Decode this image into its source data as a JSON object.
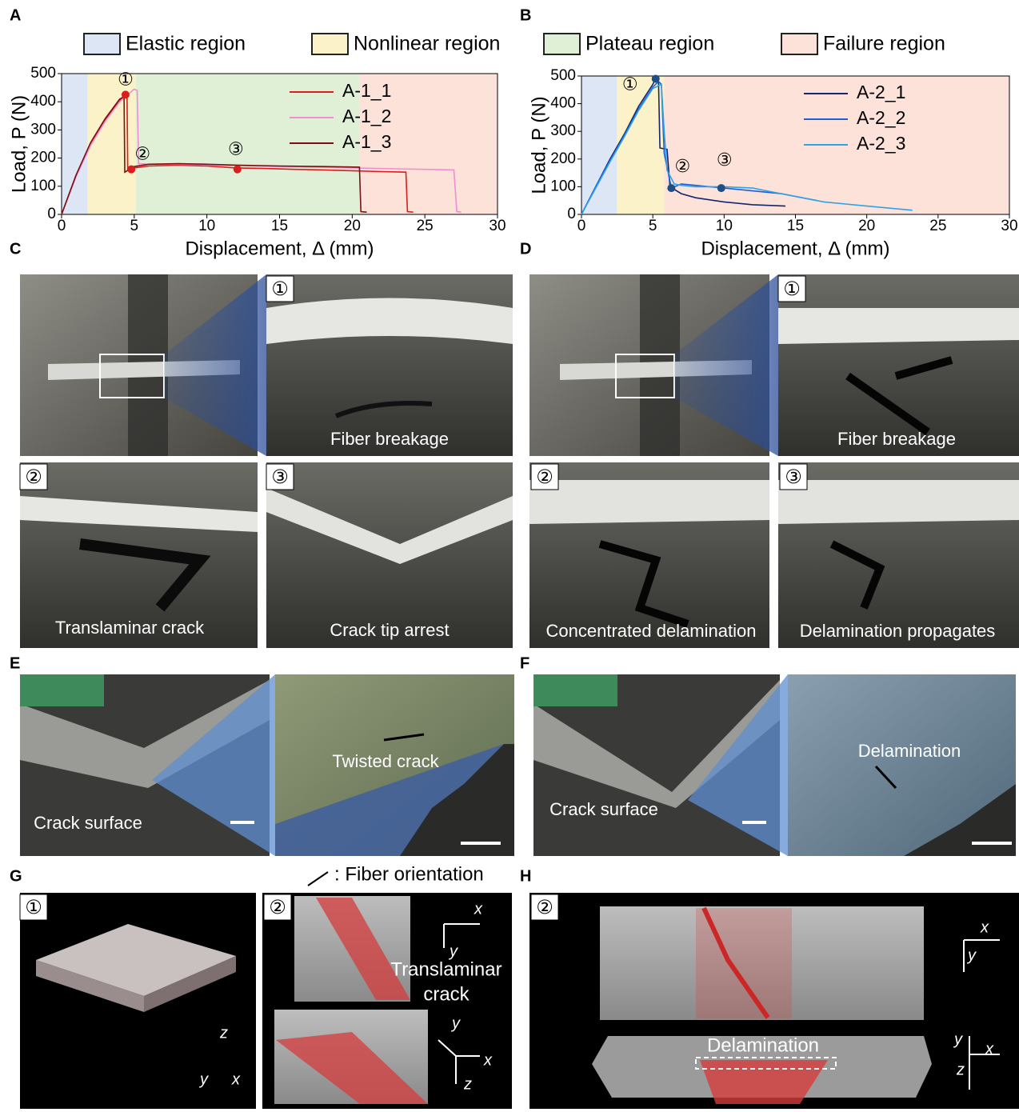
{
  "legend": {
    "items": [
      {
        "name": "Elastic region",
        "color": "#dce6f4"
      },
      {
        "name": "Nonlinear region",
        "color": "#fcf2c9"
      },
      {
        "name": "Plateau region",
        "color": "#dff0d6"
      },
      {
        "name": "Failure region",
        "color": "#fce2d8"
      }
    ]
  },
  "chart_data": [
    {
      "type": "line",
      "panel": "A",
      "xlabel": "Displacement, Δ (mm)",
      "ylabel": "Load, P (N)",
      "xlim": [
        0,
        30
      ],
      "ylim": [
        0,
        500
      ],
      "xticks": [
        0,
        5,
        10,
        15,
        20,
        25,
        30
      ],
      "yticks": [
        0,
        100,
        200,
        300,
        400,
        500
      ],
      "regions": [
        {
          "x": [
            0,
            1.8
          ],
          "color": "#dce6f4"
        },
        {
          "x": [
            1.8,
            5.1
          ],
          "color": "#fcf2c9"
        },
        {
          "x": [
            5.1,
            20.5
          ],
          "color": "#dff0d6"
        },
        {
          "x": [
            20.5,
            30
          ],
          "color": "#fce2d8"
        }
      ],
      "series": [
        {
          "name": "A-1_1",
          "color": "#d81e1e",
          "x": [
            0,
            1,
            2,
            3,
            4,
            4.5,
            4.55,
            5,
            6,
            8,
            10,
            12,
            14,
            16,
            18,
            20,
            22,
            23.7,
            23.8,
            24.2
          ],
          "values": [
            0,
            140,
            250,
            335,
            405,
            432,
            160,
            165,
            172,
            175,
            172,
            165,
            163,
            160,
            158,
            155,
            152,
            150,
            10,
            8
          ]
        },
        {
          "name": "A-1_2",
          "color": "#f08ed0",
          "x": [
            0,
            1,
            2,
            3,
            4,
            5,
            5.2,
            5.3,
            6,
            8,
            10,
            15,
            20,
            25,
            27,
            27.2,
            27.5
          ],
          "values": [
            0,
            135,
            245,
            330,
            400,
            445,
            440,
            180,
            178,
            178,
            176,
            170,
            165,
            160,
            158,
            10,
            8
          ]
        },
        {
          "name": "A-1_3",
          "color": "#7a1010",
          "x": [
            0,
            1,
            2,
            3,
            4,
            4.3,
            4.35,
            5,
            6,
            8,
            10,
            12,
            15,
            18,
            20.5,
            20.6,
            21
          ],
          "values": [
            0,
            140,
            255,
            340,
            410,
            418,
            150,
            170,
            178,
            180,
            178,
            175,
            172,
            170,
            168,
            10,
            8
          ]
        }
      ],
      "point_color": "#d81e1e",
      "points": [
        {
          "label": "①",
          "x": 4.4,
          "y": 425
        },
        {
          "label": "②",
          "x": 4.8,
          "y": 160
        },
        {
          "label": "③",
          "x": 12.1,
          "y": 160
        }
      ]
    },
    {
      "type": "line",
      "panel": "B",
      "xlabel": "Displacement, Δ (mm)",
      "ylabel": "Load, P (N)",
      "xlim": [
        0,
        30
      ],
      "ylim": [
        0,
        500
      ],
      "xticks": [
        0,
        5,
        10,
        15,
        20,
        25,
        30
      ],
      "yticks": [
        0,
        100,
        200,
        300,
        400,
        500
      ],
      "regions": [
        {
          "x": [
            0,
            2.5
          ],
          "color": "#dce6f4"
        },
        {
          "x": [
            2.5,
            5.8
          ],
          "color": "#fcf2c9"
        },
        {
          "x": [
            5.8,
            30
          ],
          "color": "#fce2d8"
        }
      ],
      "series": [
        {
          "name": "A-2_1",
          "color": "#14256e",
          "x": [
            0,
            1,
            2,
            3,
            4,
            5,
            5.2,
            5.4,
            5.5,
            6,
            6.2,
            7,
            8,
            10,
            12,
            14.3
          ],
          "values": [
            0,
            100,
            200,
            290,
            390,
            470,
            490,
            480,
            240,
            235,
            100,
            75,
            60,
            45,
            35,
            30
          ]
        },
        {
          "name": "A-2_2",
          "color": "#1f5fd6",
          "x": [
            0,
            1,
            2,
            3,
            4,
            5,
            5.4,
            5.6,
            5.8,
            6.3,
            7,
            8,
            10,
            12,
            14,
            16,
            16.5
          ],
          "values": [
            0,
            100,
            195,
            285,
            380,
            460,
            480,
            470,
            220,
            95,
            110,
            105,
            95,
            85,
            75,
            55,
            50
          ]
        },
        {
          "name": "A-2_3",
          "color": "#2fa3e6",
          "x": [
            0,
            1,
            2,
            3,
            4,
            5,
            5.6,
            5.8,
            6,
            6.5,
            7,
            8,
            10,
            12,
            13,
            15,
            17,
            20,
            23.2
          ],
          "values": [
            0,
            95,
            190,
            280,
            375,
            455,
            470,
            300,
            160,
            110,
            105,
            100,
            100,
            95,
            85,
            65,
            45,
            30,
            15
          ]
        }
      ],
      "point_color": "#1d4e86",
      "points": [
        {
          "label": "①",
          "x": 5.2,
          "y": 490
        },
        {
          "label": "②",
          "x": 6.3,
          "y": 95
        },
        {
          "label": "③",
          "x": 9.8,
          "y": 95
        }
      ]
    }
  ],
  "panels": {
    "C": {
      "label": "C",
      "captions": [
        "Fiber breakage",
        "Translaminar crack",
        "Crack tip arrest"
      ],
      "steps": [
        "①",
        "②",
        "③"
      ]
    },
    "D": {
      "label": "D",
      "captions": [
        "Fiber breakage",
        "Concentrated delamination",
        "Delamination propagates"
      ],
      "steps": [
        "①",
        "②",
        "③"
      ]
    },
    "E": {
      "label": "E",
      "texts": [
        "Twisted crack",
        "Crack surface"
      ]
    },
    "F": {
      "label": "F",
      "texts": [
        "Delamination",
        "Crack surface"
      ]
    },
    "G": {
      "label": "G",
      "note": ": Fiber orientation",
      "steps": [
        "①",
        "②"
      ],
      "crack": [
        "Translaminar",
        "crack"
      ],
      "axes": [
        "x",
        "y",
        "z"
      ]
    },
    "H": {
      "label": "H",
      "step": "②",
      "text": "Delamination",
      "axes": [
        "x",
        "y",
        "z"
      ]
    }
  }
}
